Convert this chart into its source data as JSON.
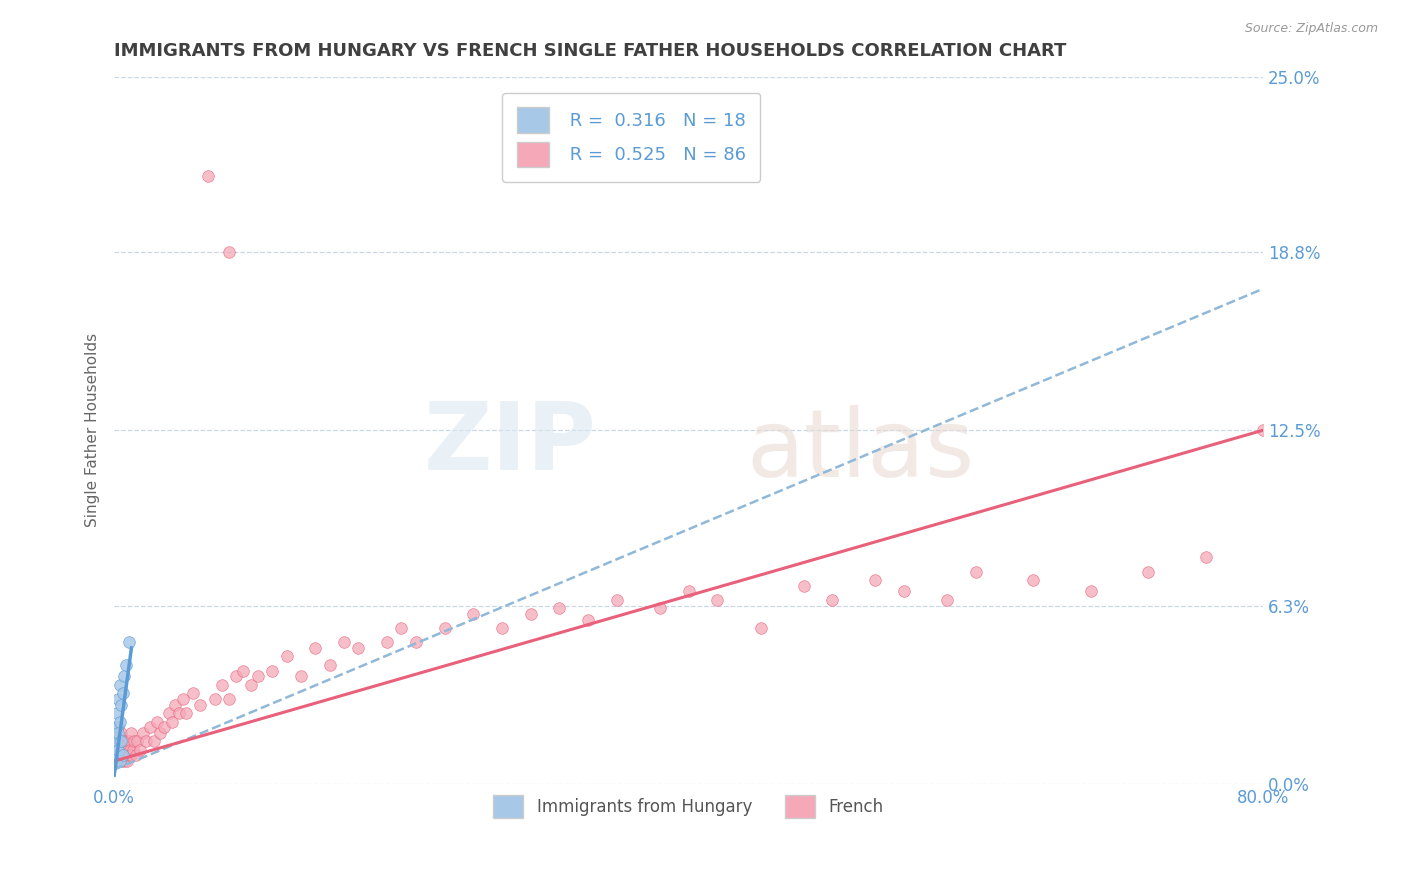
{
  "title": "IMMIGRANTS FROM HUNGARY VS FRENCH SINGLE FATHER HOUSEHOLDS CORRELATION CHART",
  "source": "Source: ZipAtlas.com",
  "ylabel": "Single Father Households",
  "xlim": [
    0.0,
    0.8
  ],
  "ylim": [
    0.0,
    0.25
  ],
  "yticks": [
    0.0,
    0.063,
    0.125,
    0.188,
    0.25
  ],
  "ytick_labels": [
    "0.0%",
    "6.3%",
    "12.5%",
    "18.8%",
    "25.0%"
  ],
  "xtick_labels_ends": [
    "0.0%",
    "80.0%"
  ],
  "hungary_R": 0.316,
  "hungary_N": 18,
  "french_R": 0.525,
  "french_N": 86,
  "hungary_color": "#a8c8e8",
  "french_color": "#f4a8b8",
  "hungary_line_color": "#5b9bd5",
  "french_line_color": "#e8607a",
  "dashed_line_color": "#90b8d8",
  "grid_color": "#c8d8e8",
  "title_color": "#404040",
  "hungary_scatter_x": [
    0.001,
    0.001,
    0.002,
    0.002,
    0.002,
    0.003,
    0.003,
    0.003,
    0.004,
    0.004,
    0.004,
    0.005,
    0.005,
    0.006,
    0.006,
    0.007,
    0.008,
    0.01
  ],
  "hungary_scatter_y": [
    0.008,
    0.015,
    0.01,
    0.02,
    0.025,
    0.012,
    0.018,
    0.03,
    0.008,
    0.022,
    0.035,
    0.015,
    0.028,
    0.01,
    0.032,
    0.038,
    0.042,
    0.05
  ],
  "hungarian_line_x0": 0.0,
  "hungarian_line_x1": 0.012,
  "hungarian_line_y0": 0.003,
  "hungarian_line_y1": 0.048,
  "french_line_x0": 0.0,
  "french_line_x1": 0.8,
  "french_line_y0": 0.008,
  "french_line_y1": 0.125,
  "dashed_line_x0": 0.0,
  "dashed_line_x1": 0.8,
  "dashed_line_y0": 0.005,
  "dashed_line_y1": 0.175,
  "french_scatter_x": [
    0.001,
    0.001,
    0.002,
    0.002,
    0.003,
    0.003,
    0.003,
    0.004,
    0.004,
    0.005,
    0.005,
    0.005,
    0.006,
    0.006,
    0.007,
    0.007,
    0.008,
    0.008,
    0.009,
    0.009,
    0.01,
    0.01,
    0.011,
    0.012,
    0.012,
    0.013,
    0.014,
    0.015,
    0.016,
    0.018,
    0.02,
    0.022,
    0.025,
    0.028,
    0.03,
    0.032,
    0.035,
    0.038,
    0.04,
    0.042,
    0.045,
    0.048,
    0.05,
    0.055,
    0.06,
    0.065,
    0.07,
    0.075,
    0.08,
    0.085,
    0.09,
    0.095,
    0.1,
    0.11,
    0.12,
    0.13,
    0.14,
    0.15,
    0.16,
    0.17,
    0.19,
    0.2,
    0.21,
    0.23,
    0.25,
    0.27,
    0.29,
    0.31,
    0.33,
    0.35,
    0.38,
    0.4,
    0.42,
    0.45,
    0.48,
    0.5,
    0.53,
    0.55,
    0.58,
    0.6,
    0.64,
    0.68,
    0.72,
    0.76,
    0.8,
    0.08
  ],
  "french_scatter_y": [
    0.008,
    0.015,
    0.01,
    0.018,
    0.008,
    0.012,
    0.02,
    0.01,
    0.015,
    0.008,
    0.012,
    0.018,
    0.01,
    0.015,
    0.008,
    0.012,
    0.01,
    0.015,
    0.008,
    0.012,
    0.01,
    0.015,
    0.012,
    0.01,
    0.018,
    0.012,
    0.015,
    0.01,
    0.015,
    0.012,
    0.018,
    0.015,
    0.02,
    0.015,
    0.022,
    0.018,
    0.02,
    0.025,
    0.022,
    0.028,
    0.025,
    0.03,
    0.025,
    0.032,
    0.028,
    0.215,
    0.03,
    0.035,
    0.03,
    0.038,
    0.04,
    0.035,
    0.038,
    0.04,
    0.045,
    0.038,
    0.048,
    0.042,
    0.05,
    0.048,
    0.05,
    0.055,
    0.05,
    0.055,
    0.06,
    0.055,
    0.06,
    0.062,
    0.058,
    0.065,
    0.062,
    0.068,
    0.065,
    0.055,
    0.07,
    0.065,
    0.072,
    0.068,
    0.065,
    0.075,
    0.072,
    0.068,
    0.075,
    0.08,
    0.125,
    0.188
  ]
}
